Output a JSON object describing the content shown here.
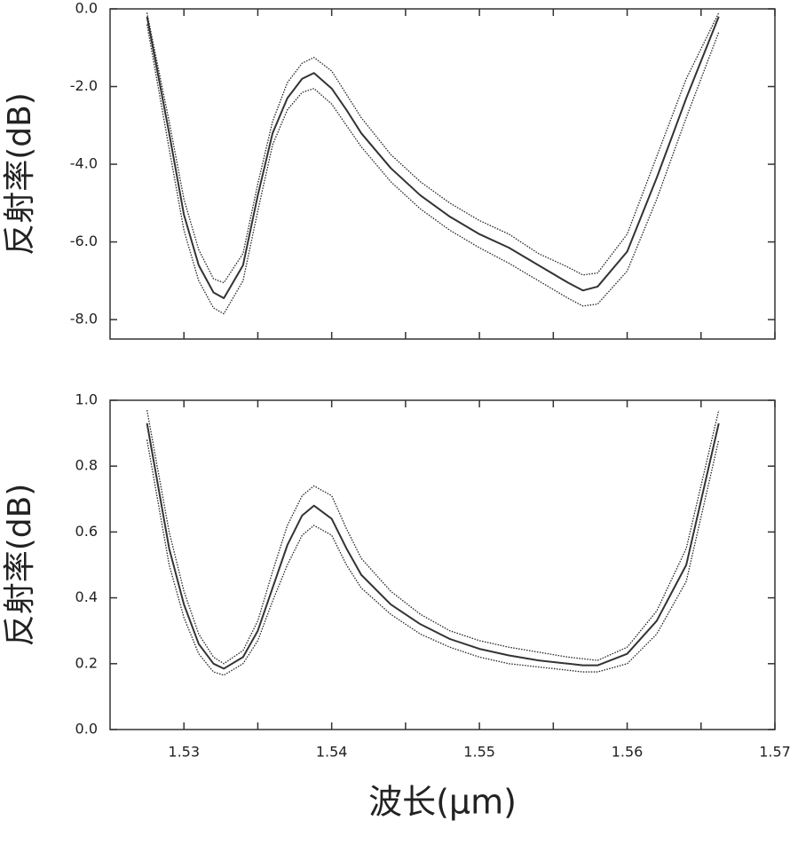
{
  "chart_data": [
    {
      "type": "line",
      "ylabel": "反射率(dB)",
      "x": [
        1.5275,
        1.529,
        1.53,
        1.531,
        1.532,
        1.5327,
        1.534,
        1.535,
        1.536,
        1.537,
        1.538,
        1.5388,
        1.54,
        1.541,
        1.542,
        1.544,
        1.546,
        1.548,
        1.55,
        1.552,
        1.554,
        1.556,
        1.557,
        1.558,
        1.56,
        1.562,
        1.564,
        1.5662
      ],
      "series": [
        {
          "color": "#333333",
          "style": "solid",
          "values": [
            -0.2,
            -3.2,
            -5.3,
            -6.6,
            -7.3,
            -7.45,
            -6.6,
            -4.8,
            -3.2,
            -2.3,
            -1.8,
            -1.65,
            -2.05,
            -2.6,
            -3.2,
            -4.1,
            -4.8,
            -5.35,
            -5.8,
            -6.15,
            -6.6,
            -7.05,
            -7.25,
            -7.15,
            -6.25,
            -4.35,
            -2.3,
            -0.2
          ]
        },
        {
          "color": "#222222",
          "style": "dotted",
          "values": [
            -0.1,
            -2.9,
            -4.9,
            -6.2,
            -6.95,
            -7.05,
            -6.3,
            -4.5,
            -2.9,
            -1.9,
            -1.4,
            -1.25,
            -1.6,
            -2.2,
            -2.8,
            -3.75,
            -4.45,
            -5.0,
            -5.45,
            -5.8,
            -6.3,
            -6.65,
            -6.85,
            -6.8,
            -5.8,
            -3.8,
            -1.8,
            -0.1
          ]
        },
        {
          "color": "#222222",
          "style": "dotted",
          "values": [
            -0.4,
            -3.6,
            -5.7,
            -7.0,
            -7.7,
            -7.85,
            -7.0,
            -5.2,
            -3.5,
            -2.6,
            -2.15,
            -2.05,
            -2.45,
            -3.0,
            -3.55,
            -4.45,
            -5.15,
            -5.7,
            -6.15,
            -6.55,
            -7.0,
            -7.45,
            -7.65,
            -7.6,
            -6.75,
            -4.9,
            -2.8,
            -0.6
          ]
        }
      ],
      "xlim": [
        1.525,
        1.57
      ],
      "xticks": [
        1.53,
        1.54,
        1.55,
        1.56,
        1.57
      ],
      "xminorticks": [
        1.535,
        1.545,
        1.555,
        1.565
      ],
      "xtick_labels": false,
      "ylim": [
        -8.5,
        0
      ],
      "yticks": [
        {
          "value": 0,
          "label": "0.0"
        },
        {
          "value": -2,
          "label": "-2.0"
        },
        {
          "value": -4,
          "label": "-4.0"
        },
        {
          "value": -6,
          "label": "-6.0"
        },
        {
          "value": -8,
          "label": "-8.0"
        }
      ]
    },
    {
      "type": "line",
      "ylabel": "反射率(dB)",
      "xlabel": "波长(μm)",
      "x": [
        1.5275,
        1.529,
        1.53,
        1.531,
        1.532,
        1.5327,
        1.534,
        1.535,
        1.536,
        1.537,
        1.538,
        1.5388,
        1.54,
        1.541,
        1.542,
        1.544,
        1.546,
        1.548,
        1.55,
        1.552,
        1.554,
        1.556,
        1.557,
        1.558,
        1.56,
        1.562,
        1.564,
        1.5662
      ],
      "series": [
        {
          "color": "#333333",
          "style": "solid",
          "values": [
            0.93,
            0.55,
            0.38,
            0.26,
            0.2,
            0.185,
            0.22,
            0.3,
            0.43,
            0.56,
            0.65,
            0.68,
            0.64,
            0.55,
            0.47,
            0.38,
            0.32,
            0.275,
            0.245,
            0.225,
            0.21,
            0.2,
            0.195,
            0.195,
            0.23,
            0.33,
            0.5,
            0.93
          ]
        },
        {
          "color": "#222222",
          "style": "dotted",
          "values": [
            0.97,
            0.6,
            0.42,
            0.29,
            0.22,
            0.2,
            0.24,
            0.33,
            0.48,
            0.62,
            0.71,
            0.74,
            0.71,
            0.61,
            0.52,
            0.42,
            0.35,
            0.3,
            0.27,
            0.25,
            0.235,
            0.22,
            0.215,
            0.21,
            0.25,
            0.36,
            0.55,
            0.97
          ]
        },
        {
          "color": "#222222",
          "style": "dotted",
          "values": [
            0.88,
            0.5,
            0.34,
            0.23,
            0.175,
            0.165,
            0.2,
            0.27,
            0.39,
            0.5,
            0.59,
            0.62,
            0.59,
            0.5,
            0.43,
            0.35,
            0.29,
            0.25,
            0.22,
            0.2,
            0.19,
            0.18,
            0.175,
            0.175,
            0.2,
            0.29,
            0.45,
            0.88
          ]
        }
      ],
      "xlim": [
        1.525,
        1.57
      ],
      "xticks": [
        1.53,
        1.54,
        1.55,
        1.56,
        1.57
      ],
      "xminorticks": [
        1.535,
        1.545,
        1.555,
        1.565
      ],
      "xtick_labels": true,
      "ylim": [
        0,
        1
      ],
      "yticks": [
        {
          "value": 0,
          "label": "0.0"
        },
        {
          "value": 0.2,
          "label": "0.2"
        },
        {
          "value": 0.4,
          "label": "0.4"
        },
        {
          "value": 0.6,
          "label": "0.6"
        },
        {
          "value": 0.8,
          "label": "0.8"
        },
        {
          "value": 1,
          "label": "1.0"
        }
      ]
    }
  ]
}
